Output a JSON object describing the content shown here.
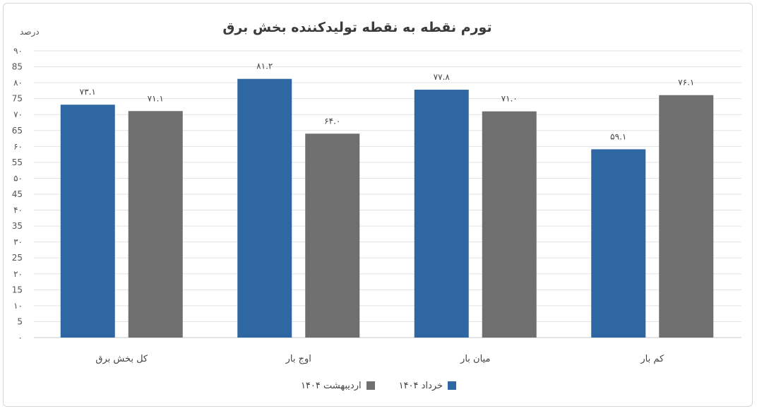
{
  "chart_data": {
    "type": "bar",
    "title": "تورم نقطه به نقطه تولیدکننده بخش برق",
    "ylabel": "درصد",
    "ylim": [
      0,
      90
    ],
    "ytick_labels": [
      "۰",
      "5",
      "۱۰",
      "15",
      "۲۰",
      "25",
      "۳۰",
      "35",
      "۴۰",
      "45",
      "۵۰",
      "55",
      "۶۰",
      "65",
      "۷۰",
      "75",
      "۸۰",
      "85",
      "۹۰"
    ],
    "categories": [
      "کل بخش برق",
      "اوج بار",
      "میان بار",
      "کم بار"
    ],
    "series": [
      {
        "name": "خرداد ۱۴۰۴",
        "color": "#2e67a2",
        "values": [
          73.1,
          81.2,
          77.8,
          59.1
        ],
        "labels": [
          "۷۳.۱",
          "۸۱.۲",
          "۷۷.۸",
          "۵۹.۱"
        ]
      },
      {
        "name": "اردیبهشت ۱۴۰۴",
        "color": "#6f6f6f",
        "values": [
          71.1,
          64.0,
          71.0,
          76.1
        ],
        "labels": [
          "۷۱.۱",
          "۶۴.۰",
          "۷۱.۰",
          "۷۶.۱"
        ]
      }
    ],
    "grid": true,
    "legend_position": "bottom"
  }
}
